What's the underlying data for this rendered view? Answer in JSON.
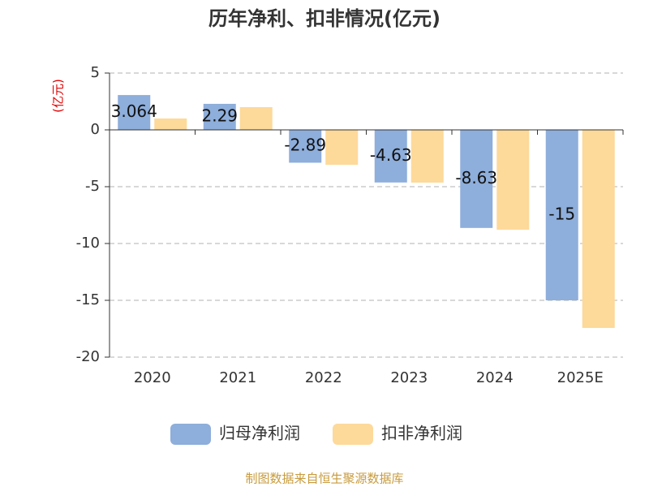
{
  "chart_data": {
    "type": "bar",
    "title": "历年净利、扣非情况(亿元)",
    "y_label": "(亿元)",
    "categories": [
      "2020",
      "2021",
      "2022",
      "2023",
      "2024",
      "2025E"
    ],
    "series": [
      {
        "name": "归母净利润",
        "color": "#8eaedb",
        "values": [
          3.064,
          2.29,
          -2.89,
          -4.63,
          -8.63,
          -15
        ],
        "show_labels": true
      },
      {
        "name": "扣非净利润",
        "color": "#fdd99a",
        "values": [
          1.0,
          2.0,
          -3.07,
          -4.64,
          -8.79,
          -17.43
        ],
        "show_labels": false
      }
    ],
    "ylim": [
      -20,
      5
    ],
    "yticks": [
      -20,
      -15,
      -10,
      -5,
      0,
      5
    ],
    "grid": true,
    "legend": "bottom",
    "source": "制图数据来自恒生聚源数据库"
  }
}
